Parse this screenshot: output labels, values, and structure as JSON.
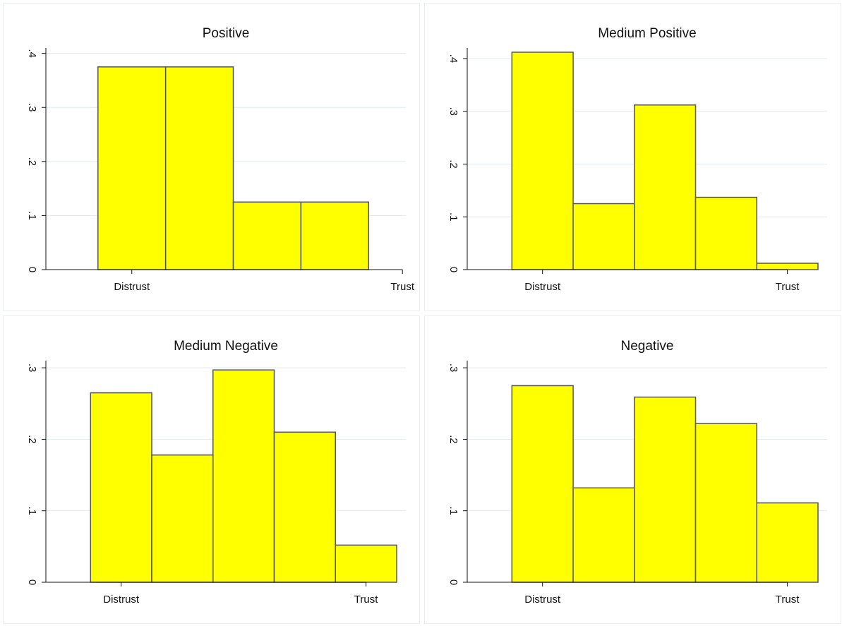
{
  "chart_data": [
    {
      "type": "histogram",
      "title": "Positive",
      "bins": [
        0.5,
        1.5,
        2.5,
        3.5,
        4.5
      ],
      "values": [
        0.375,
        0.375,
        0.125,
        0.125
      ],
      "color": "#ffff00",
      "xlim": [
        -0.27,
        5.05
      ],
      "xticks": [
        {
          "value": 1,
          "label": "Distrust"
        },
        {
          "value": 5,
          "label": "Trust"
        }
      ],
      "ylim": [
        0,
        0.41
      ],
      "yticks": [
        0,
        {
          "value": 0.1,
          "label": ".1"
        },
        {
          "value": 0.2,
          "label": ".2"
        },
        {
          "value": 0.3,
          "label": ".3"
        },
        {
          "value": 0.4,
          "label": ".4"
        }
      ],
      "grid": true
    },
    {
      "type": "histogram",
      "title": "Medium Positive",
      "bins": [
        0.5,
        1.5,
        2.5,
        3.5,
        4.5,
        5.5
      ],
      "values": [
        0.412,
        0.125,
        0.312,
        0.137,
        0.012
      ],
      "color": "#ffff00",
      "xlim": [
        -0.23,
        5.65
      ],
      "xticks": [
        {
          "value": 1,
          "label": "Distrust"
        },
        {
          "value": 5,
          "label": "Trust"
        }
      ],
      "ylim": [
        0,
        0.42
      ],
      "yticks": [
        0,
        {
          "value": 0.1,
          "label": ".1"
        },
        {
          "value": 0.2,
          "label": ".2"
        },
        {
          "value": 0.3,
          "label": ".3"
        },
        {
          "value": 0.4,
          "label": ".4"
        }
      ],
      "grid": true
    },
    {
      "type": "histogram",
      "title": "Medium Negative",
      "bins": [
        0.5,
        1.5,
        2.5,
        3.5,
        4.5,
        5.5
      ],
      "values": [
        0.265,
        0.178,
        0.297,
        0.21,
        0.052
      ],
      "color": "#ffff00",
      "xlim": [
        -0.23,
        5.65
      ],
      "xticks": [
        {
          "value": 1,
          "label": "Distrust"
        },
        {
          "value": 5,
          "label": "Trust"
        }
      ],
      "ylim": [
        0,
        0.31
      ],
      "yticks": [
        0,
        {
          "value": 0.1,
          "label": ".1"
        },
        {
          "value": 0.2,
          "label": ".2"
        },
        {
          "value": 0.3,
          "label": ".3"
        }
      ],
      "grid": true
    },
    {
      "type": "histogram",
      "title": "Negative",
      "bins": [
        0.5,
        1.5,
        2.5,
        3.5,
        4.5,
        5.5
      ],
      "values": [
        0.275,
        0.132,
        0.259,
        0.222,
        0.111
      ],
      "color": "#ffff00",
      "xlim": [
        -0.23,
        5.65
      ],
      "xticks": [
        {
          "value": 1,
          "label": "Distrust"
        },
        {
          "value": 5,
          "label": "Trust"
        }
      ],
      "ylim": [
        0,
        0.31
      ],
      "yticks": [
        0,
        {
          "value": 0.1,
          "label": ".1"
        },
        {
          "value": 0.2,
          "label": ".2"
        },
        {
          "value": 0.3,
          "label": ".3"
        }
      ],
      "grid": true
    }
  ]
}
